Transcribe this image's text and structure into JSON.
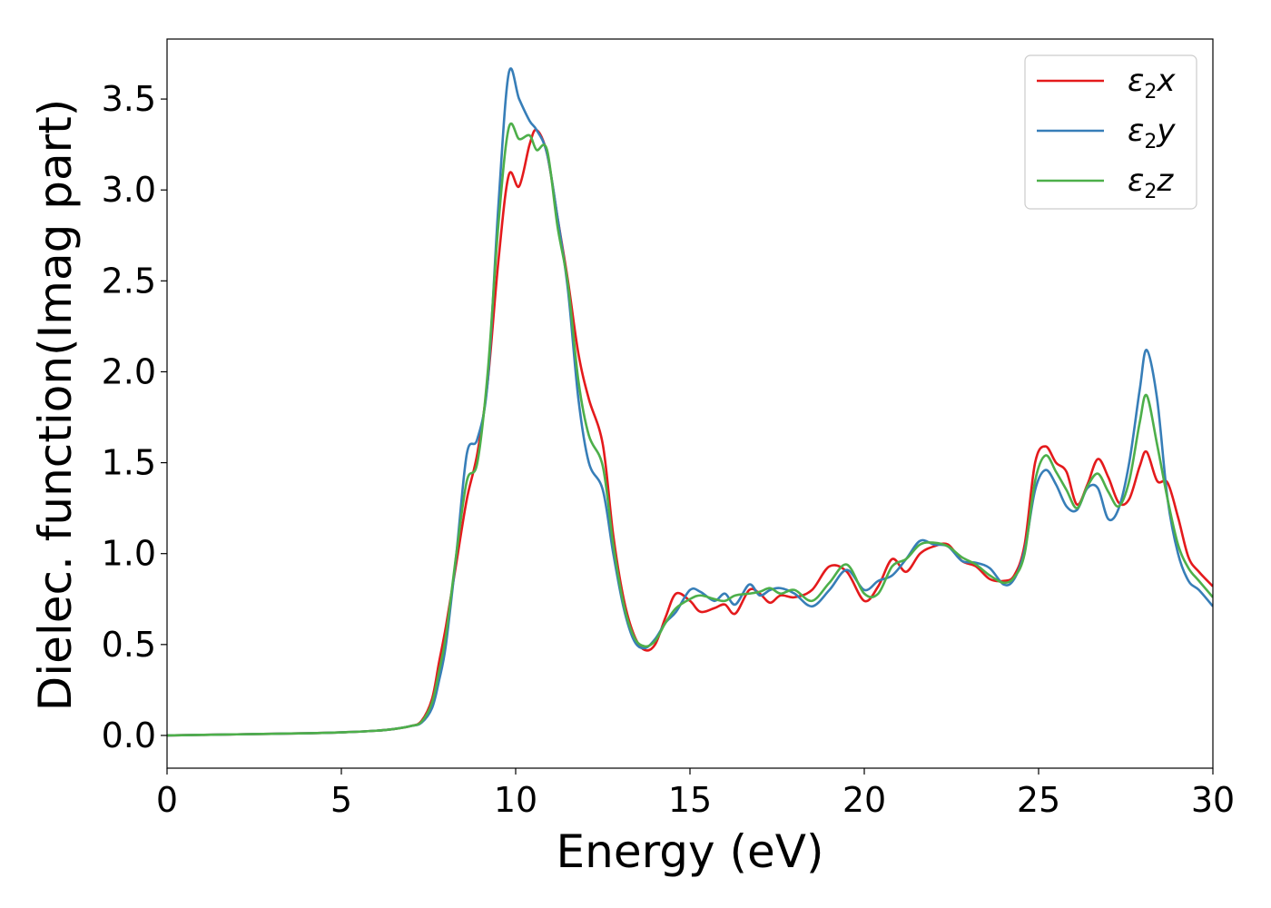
{
  "chart_data": {
    "type": "line",
    "xlabel": "Energy (eV)",
    "ylabel": "Dielec. function(Imag part)",
    "xlim": [
      0,
      30
    ],
    "ylim": [
      -0.18,
      3.83
    ],
    "xticks": [
      "0",
      "5",
      "10",
      "15",
      "20",
      "25",
      "30"
    ],
    "yticks": [
      "0.0",
      "0.5",
      "1.0",
      "1.5",
      "2.0",
      "2.5",
      "3.0",
      "3.5"
    ],
    "grid": false,
    "legend_position": "top-right",
    "series": [
      {
        "name": "ε2x",
        "legend": {
          "base": "ε",
          "sub": "2",
          "var": "x"
        },
        "color": "#e41a1c",
        "x": [
          0,
          1,
          2,
          3,
          4,
          5,
          6,
          6.5,
          7,
          7.3,
          7.6,
          7.8,
          8,
          8.3,
          8.6,
          8.9,
          9.2,
          9.5,
          9.8,
          10.1,
          10.4,
          10.6,
          10.9,
          11.2,
          11.5,
          11.8,
          12.1,
          12.5,
          12.8,
          13.1,
          13.4,
          13.7,
          14.0,
          14.3,
          14.6,
          15.0,
          15.3,
          15.7,
          16.0,
          16.3,
          16.7,
          17.0,
          17.3,
          17.6,
          18.0,
          18.5,
          19.0,
          19.5,
          20.0,
          20.4,
          20.8,
          21.2,
          21.6,
          22.0,
          22.4,
          22.8,
          23.2,
          23.6,
          24.0,
          24.3,
          24.6,
          24.9,
          25.2,
          25.5,
          25.8,
          26.1,
          26.4,
          26.7,
          27.0,
          27.3,
          27.6,
          27.9,
          28.1,
          28.4,
          28.7,
          29.0,
          29.3,
          29.6,
          30.0
        ],
        "y": [
          0.0,
          0.003,
          0.006,
          0.009,
          0.012,
          0.017,
          0.026,
          0.035,
          0.052,
          0.08,
          0.2,
          0.4,
          0.6,
          0.95,
          1.3,
          1.55,
          1.95,
          2.6,
          3.08,
          3.02,
          3.25,
          3.33,
          3.2,
          2.85,
          2.5,
          2.1,
          1.85,
          1.6,
          1.1,
          0.75,
          0.55,
          0.47,
          0.5,
          0.65,
          0.78,
          0.74,
          0.68,
          0.7,
          0.72,
          0.67,
          0.8,
          0.78,
          0.73,
          0.77,
          0.76,
          0.8,
          0.93,
          0.9,
          0.74,
          0.82,
          0.97,
          0.9,
          1.0,
          1.04,
          1.05,
          0.96,
          0.93,
          0.86,
          0.85,
          0.88,
          1.05,
          1.5,
          1.59,
          1.5,
          1.45,
          1.27,
          1.38,
          1.52,
          1.42,
          1.28,
          1.3,
          1.48,
          1.56,
          1.4,
          1.39,
          1.2,
          0.98,
          0.9,
          0.82
        ]
      },
      {
        "name": "ε2y",
        "legend": {
          "base": "ε",
          "sub": "2",
          "var": "y"
        },
        "color": "#377eb8",
        "x": [
          0,
          1,
          2,
          3,
          4,
          5,
          6,
          6.5,
          7,
          7.3,
          7.6,
          7.8,
          8,
          8.3,
          8.6,
          8.9,
          9.2,
          9.5,
          9.8,
          10.1,
          10.4,
          10.6,
          10.9,
          11.2,
          11.5,
          11.8,
          12.1,
          12.5,
          12.8,
          13.1,
          13.4,
          13.7,
          14.0,
          14.3,
          14.6,
          15.0,
          15.3,
          15.7,
          16.0,
          16.3,
          16.7,
          17.0,
          17.3,
          17.6,
          18.0,
          18.5,
          19.0,
          19.5,
          20.0,
          20.4,
          20.8,
          21.2,
          21.6,
          22.0,
          22.4,
          22.8,
          23.2,
          23.6,
          24.0,
          24.3,
          24.6,
          24.9,
          25.2,
          25.5,
          25.8,
          26.1,
          26.4,
          26.7,
          27.0,
          27.3,
          27.6,
          27.9,
          28.1,
          28.4,
          28.7,
          29.0,
          29.3,
          29.6,
          30.0
        ],
        "y": [
          0.0,
          0.003,
          0.006,
          0.009,
          0.012,
          0.017,
          0.026,
          0.035,
          0.052,
          0.07,
          0.15,
          0.3,
          0.5,
          1.0,
          1.55,
          1.63,
          1.95,
          2.9,
          3.64,
          3.5,
          3.38,
          3.33,
          3.2,
          2.85,
          2.45,
          1.85,
          1.5,
          1.35,
          1.0,
          0.7,
          0.52,
          0.48,
          0.53,
          0.62,
          0.68,
          0.8,
          0.79,
          0.74,
          0.78,
          0.72,
          0.83,
          0.77,
          0.8,
          0.81,
          0.78,
          0.71,
          0.8,
          0.91,
          0.8,
          0.85,
          0.88,
          0.97,
          1.07,
          1.05,
          1.04,
          0.96,
          0.95,
          0.92,
          0.83,
          0.86,
          1.02,
          1.35,
          1.46,
          1.38,
          1.26,
          1.24,
          1.36,
          1.36,
          1.19,
          1.25,
          1.5,
          1.9,
          2.12,
          1.85,
          1.3,
          1.0,
          0.85,
          0.8,
          0.71
        ]
      },
      {
        "name": "ε2z",
        "legend": {
          "base": "ε",
          "sub": "2",
          "var": "z"
        },
        "color": "#4daf4a",
        "x": [
          0,
          1,
          2,
          3,
          4,
          5,
          6,
          6.5,
          7,
          7.3,
          7.6,
          7.8,
          8,
          8.3,
          8.6,
          8.9,
          9.2,
          9.5,
          9.8,
          10.1,
          10.4,
          10.6,
          10.9,
          11.2,
          11.5,
          11.8,
          12.1,
          12.5,
          12.8,
          13.1,
          13.4,
          13.7,
          14.0,
          14.3,
          14.6,
          15.0,
          15.3,
          15.7,
          16.0,
          16.3,
          16.7,
          17.0,
          17.3,
          17.6,
          18.0,
          18.5,
          19.0,
          19.5,
          20.0,
          20.4,
          20.8,
          21.2,
          21.6,
          22.0,
          22.4,
          22.8,
          23.2,
          23.6,
          24.0,
          24.3,
          24.6,
          24.9,
          25.2,
          25.5,
          25.8,
          26.1,
          26.4,
          26.7,
          27.0,
          27.3,
          27.6,
          27.9,
          28.1,
          28.4,
          28.7,
          29.0,
          29.3,
          29.6,
          30.0
        ],
        "y": [
          0.0,
          0.003,
          0.006,
          0.009,
          0.012,
          0.017,
          0.026,
          0.035,
          0.052,
          0.075,
          0.18,
          0.35,
          0.55,
          1.0,
          1.4,
          1.5,
          2.0,
          2.8,
          3.34,
          3.28,
          3.3,
          3.22,
          3.22,
          2.8,
          2.48,
          1.95,
          1.65,
          1.48,
          1.05,
          0.72,
          0.54,
          0.49,
          0.52,
          0.62,
          0.7,
          0.75,
          0.77,
          0.75,
          0.74,
          0.77,
          0.78,
          0.79,
          0.81,
          0.78,
          0.8,
          0.74,
          0.84,
          0.94,
          0.78,
          0.78,
          0.93,
          0.97,
          1.05,
          1.06,
          1.04,
          0.98,
          0.94,
          0.88,
          0.84,
          0.87,
          1.0,
          1.4,
          1.54,
          1.45,
          1.35,
          1.25,
          1.37,
          1.44,
          1.34,
          1.26,
          1.4,
          1.72,
          1.87,
          1.6,
          1.3,
          1.05,
          0.92,
          0.85,
          0.76
        ]
      }
    ]
  }
}
